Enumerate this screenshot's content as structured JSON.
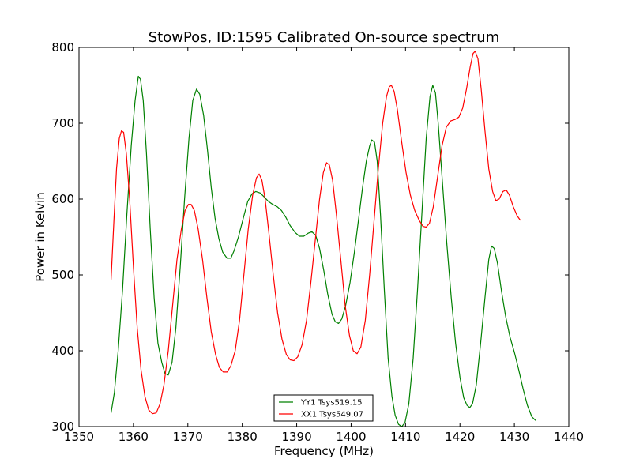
{
  "chart_data": {
    "type": "line",
    "title": "StowPos, ID:1595 Calibrated On-source spectrum",
    "xlabel": "Frequency (MHz)",
    "ylabel": "Power in Kelvin",
    "xlim": [
      1350,
      1440
    ],
    "ylim": [
      300,
      800
    ],
    "x_ticks": [
      1350,
      1360,
      1370,
      1380,
      1390,
      1400,
      1410,
      1420,
      1430,
      1440
    ],
    "y_ticks": [
      300,
      400,
      500,
      600,
      700,
      800
    ],
    "grid": false,
    "legend_position": "lower-center",
    "series": [
      {
        "name": "YY1 Tsys519.15",
        "color": "#008000",
        "points": [
          [
            1355.9,
            318
          ],
          [
            1356.5,
            345
          ],
          [
            1357.2,
            400
          ],
          [
            1358.0,
            480
          ],
          [
            1358.8,
            580
          ],
          [
            1359.6,
            670
          ],
          [
            1360.3,
            730
          ],
          [
            1360.9,
            762
          ],
          [
            1361.3,
            758
          ],
          [
            1361.8,
            730
          ],
          [
            1362.4,
            660
          ],
          [
            1363.1,
            560
          ],
          [
            1363.8,
            470
          ],
          [
            1364.5,
            410
          ],
          [
            1365.2,
            385
          ],
          [
            1365.8,
            370
          ],
          [
            1366.4,
            368
          ],
          [
            1367.1,
            385
          ],
          [
            1367.8,
            430
          ],
          [
            1368.6,
            510
          ],
          [
            1369.4,
            600
          ],
          [
            1370.2,
            680
          ],
          [
            1370.9,
            730
          ],
          [
            1371.6,
            745
          ],
          [
            1372.2,
            738
          ],
          [
            1372.9,
            710
          ],
          [
            1373.6,
            665
          ],
          [
            1374.3,
            615
          ],
          [
            1375.0,
            575
          ],
          [
            1375.7,
            548
          ],
          [
            1376.4,
            530
          ],
          [
            1377.2,
            522
          ],
          [
            1377.9,
            522
          ],
          [
            1378.5,
            532
          ],
          [
            1379.3,
            550
          ],
          [
            1380.2,
            575
          ],
          [
            1381.0,
            597
          ],
          [
            1381.8,
            607
          ],
          [
            1382.5,
            610
          ],
          [
            1383.3,
            608
          ],
          [
            1384.0,
            603
          ],
          [
            1384.8,
            597
          ],
          [
            1385.6,
            593
          ],
          [
            1386.4,
            590
          ],
          [
            1387.2,
            585
          ],
          [
            1388.0,
            576
          ],
          [
            1388.8,
            565
          ],
          [
            1389.7,
            556
          ],
          [
            1390.5,
            551
          ],
          [
            1391.3,
            551
          ],
          [
            1392.1,
            555
          ],
          [
            1392.8,
            557
          ],
          [
            1393.5,
            552
          ],
          [
            1394.2,
            535
          ],
          [
            1395.0,
            505
          ],
          [
            1395.7,
            475
          ],
          [
            1396.5,
            448
          ],
          [
            1397.1,
            438
          ],
          [
            1397.7,
            436
          ],
          [
            1398.3,
            442
          ],
          [
            1399.0,
            460
          ],
          [
            1399.8,
            490
          ],
          [
            1400.6,
            530
          ],
          [
            1401.4,
            575
          ],
          [
            1402.1,
            615
          ],
          [
            1402.8,
            650
          ],
          [
            1403.4,
            670
          ],
          [
            1403.8,
            678
          ],
          [
            1404.3,
            675
          ],
          [
            1404.8,
            650
          ],
          [
            1405.4,
            580
          ],
          [
            1406.1,
            480
          ],
          [
            1406.8,
            390
          ],
          [
            1407.5,
            340
          ],
          [
            1408.1,
            315
          ],
          [
            1408.7,
            303
          ],
          [
            1409.3,
            300
          ],
          [
            1409.9,
            305
          ],
          [
            1410.6,
            330
          ],
          [
            1411.4,
            390
          ],
          [
            1412.2,
            480
          ],
          [
            1413.0,
            580
          ],
          [
            1413.8,
            680
          ],
          [
            1414.5,
            735
          ],
          [
            1415.0,
            750
          ],
          [
            1415.5,
            740
          ],
          [
            1416.0,
            700
          ],
          [
            1416.8,
            620
          ],
          [
            1417.6,
            540
          ],
          [
            1418.4,
            470
          ],
          [
            1419.2,
            410
          ],
          [
            1420.0,
            365
          ],
          [
            1420.7,
            338
          ],
          [
            1421.3,
            328
          ],
          [
            1421.8,
            325
          ],
          [
            1422.3,
            330
          ],
          [
            1423.0,
            355
          ],
          [
            1423.8,
            410
          ],
          [
            1424.6,
            470
          ],
          [
            1425.3,
            520
          ],
          [
            1425.8,
            538
          ],
          [
            1426.3,
            535
          ],
          [
            1426.9,
            515
          ],
          [
            1427.6,
            480
          ],
          [
            1428.4,
            445
          ],
          [
            1429.2,
            418
          ],
          [
            1430.0,
            398
          ],
          [
            1430.8,
            375
          ],
          [
            1431.6,
            350
          ],
          [
            1432.4,
            328
          ],
          [
            1433.2,
            313
          ],
          [
            1433.9,
            308
          ]
        ]
      },
      {
        "name": "XX1 Tsys549.07",
        "color": "#ff0000",
        "points": [
          [
            1355.9,
            494
          ],
          [
            1356.4,
            570
          ],
          [
            1356.9,
            640
          ],
          [
            1357.4,
            680
          ],
          [
            1357.8,
            690
          ],
          [
            1358.2,
            688
          ],
          [
            1358.7,
            660
          ],
          [
            1359.3,
            600
          ],
          [
            1360.0,
            510
          ],
          [
            1360.7,
            430
          ],
          [
            1361.4,
            375
          ],
          [
            1362.1,
            340
          ],
          [
            1362.8,
            322
          ],
          [
            1363.5,
            317
          ],
          [
            1364.2,
            318
          ],
          [
            1364.9,
            330
          ],
          [
            1365.6,
            355
          ],
          [
            1366.4,
            400
          ],
          [
            1367.2,
            460
          ],
          [
            1368.0,
            520
          ],
          [
            1368.8,
            560
          ],
          [
            1369.5,
            585
          ],
          [
            1370.1,
            593
          ],
          [
            1370.6,
            593
          ],
          [
            1371.2,
            585
          ],
          [
            1371.9,
            560
          ],
          [
            1372.7,
            520
          ],
          [
            1373.5,
            470
          ],
          [
            1374.3,
            425
          ],
          [
            1375.1,
            395
          ],
          [
            1375.8,
            378
          ],
          [
            1376.5,
            372
          ],
          [
            1377.2,
            372
          ],
          [
            1377.9,
            380
          ],
          [
            1378.7,
            400
          ],
          [
            1379.5,
            440
          ],
          [
            1380.3,
            500
          ],
          [
            1381.1,
            560
          ],
          [
            1381.9,
            605
          ],
          [
            1382.6,
            628
          ],
          [
            1383.1,
            633
          ],
          [
            1383.6,
            625
          ],
          [
            1384.2,
            600
          ],
          [
            1384.9,
            555
          ],
          [
            1385.7,
            500
          ],
          [
            1386.5,
            450
          ],
          [
            1387.3,
            415
          ],
          [
            1388.1,
            395
          ],
          [
            1388.8,
            388
          ],
          [
            1389.5,
            387
          ],
          [
            1390.2,
            392
          ],
          [
            1391.0,
            408
          ],
          [
            1391.8,
            440
          ],
          [
            1392.6,
            490
          ],
          [
            1393.4,
            545
          ],
          [
            1394.2,
            600
          ],
          [
            1394.9,
            635
          ],
          [
            1395.5,
            648
          ],
          [
            1396.0,
            645
          ],
          [
            1396.6,
            625
          ],
          [
            1397.3,
            580
          ],
          [
            1398.1,
            520
          ],
          [
            1398.9,
            460
          ],
          [
            1399.7,
            420
          ],
          [
            1400.4,
            400
          ],
          [
            1401.1,
            396
          ],
          [
            1401.8,
            405
          ],
          [
            1402.6,
            440
          ],
          [
            1403.4,
            500
          ],
          [
            1404.2,
            570
          ],
          [
            1405.0,
            640
          ],
          [
            1405.8,
            700
          ],
          [
            1406.5,
            735
          ],
          [
            1407.0,
            748
          ],
          [
            1407.4,
            750
          ],
          [
            1407.9,
            742
          ],
          [
            1408.5,
            718
          ],
          [
            1409.3,
            675
          ],
          [
            1410.1,
            635
          ],
          [
            1410.9,
            605
          ],
          [
            1411.7,
            585
          ],
          [
            1412.5,
            572
          ],
          [
            1413.2,
            564
          ],
          [
            1413.8,
            563
          ],
          [
            1414.4,
            568
          ],
          [
            1415.1,
            590
          ],
          [
            1415.9,
            630
          ],
          [
            1416.7,
            670
          ],
          [
            1417.5,
            695
          ],
          [
            1418.3,
            703
          ],
          [
            1419.1,
            705
          ],
          [
            1419.8,
            708
          ],
          [
            1420.5,
            720
          ],
          [
            1421.2,
            745
          ],
          [
            1421.9,
            775
          ],
          [
            1422.4,
            792
          ],
          [
            1422.8,
            795
          ],
          [
            1423.3,
            785
          ],
          [
            1423.9,
            745
          ],
          [
            1424.6,
            690
          ],
          [
            1425.3,
            640
          ],
          [
            1426.0,
            610
          ],
          [
            1426.6,
            598
          ],
          [
            1427.2,
            600
          ],
          [
            1427.9,
            610
          ],
          [
            1428.5,
            612
          ],
          [
            1429.1,
            605
          ],
          [
            1429.8,
            590
          ],
          [
            1430.5,
            578
          ],
          [
            1431.1,
            572
          ]
        ]
      }
    ]
  }
}
